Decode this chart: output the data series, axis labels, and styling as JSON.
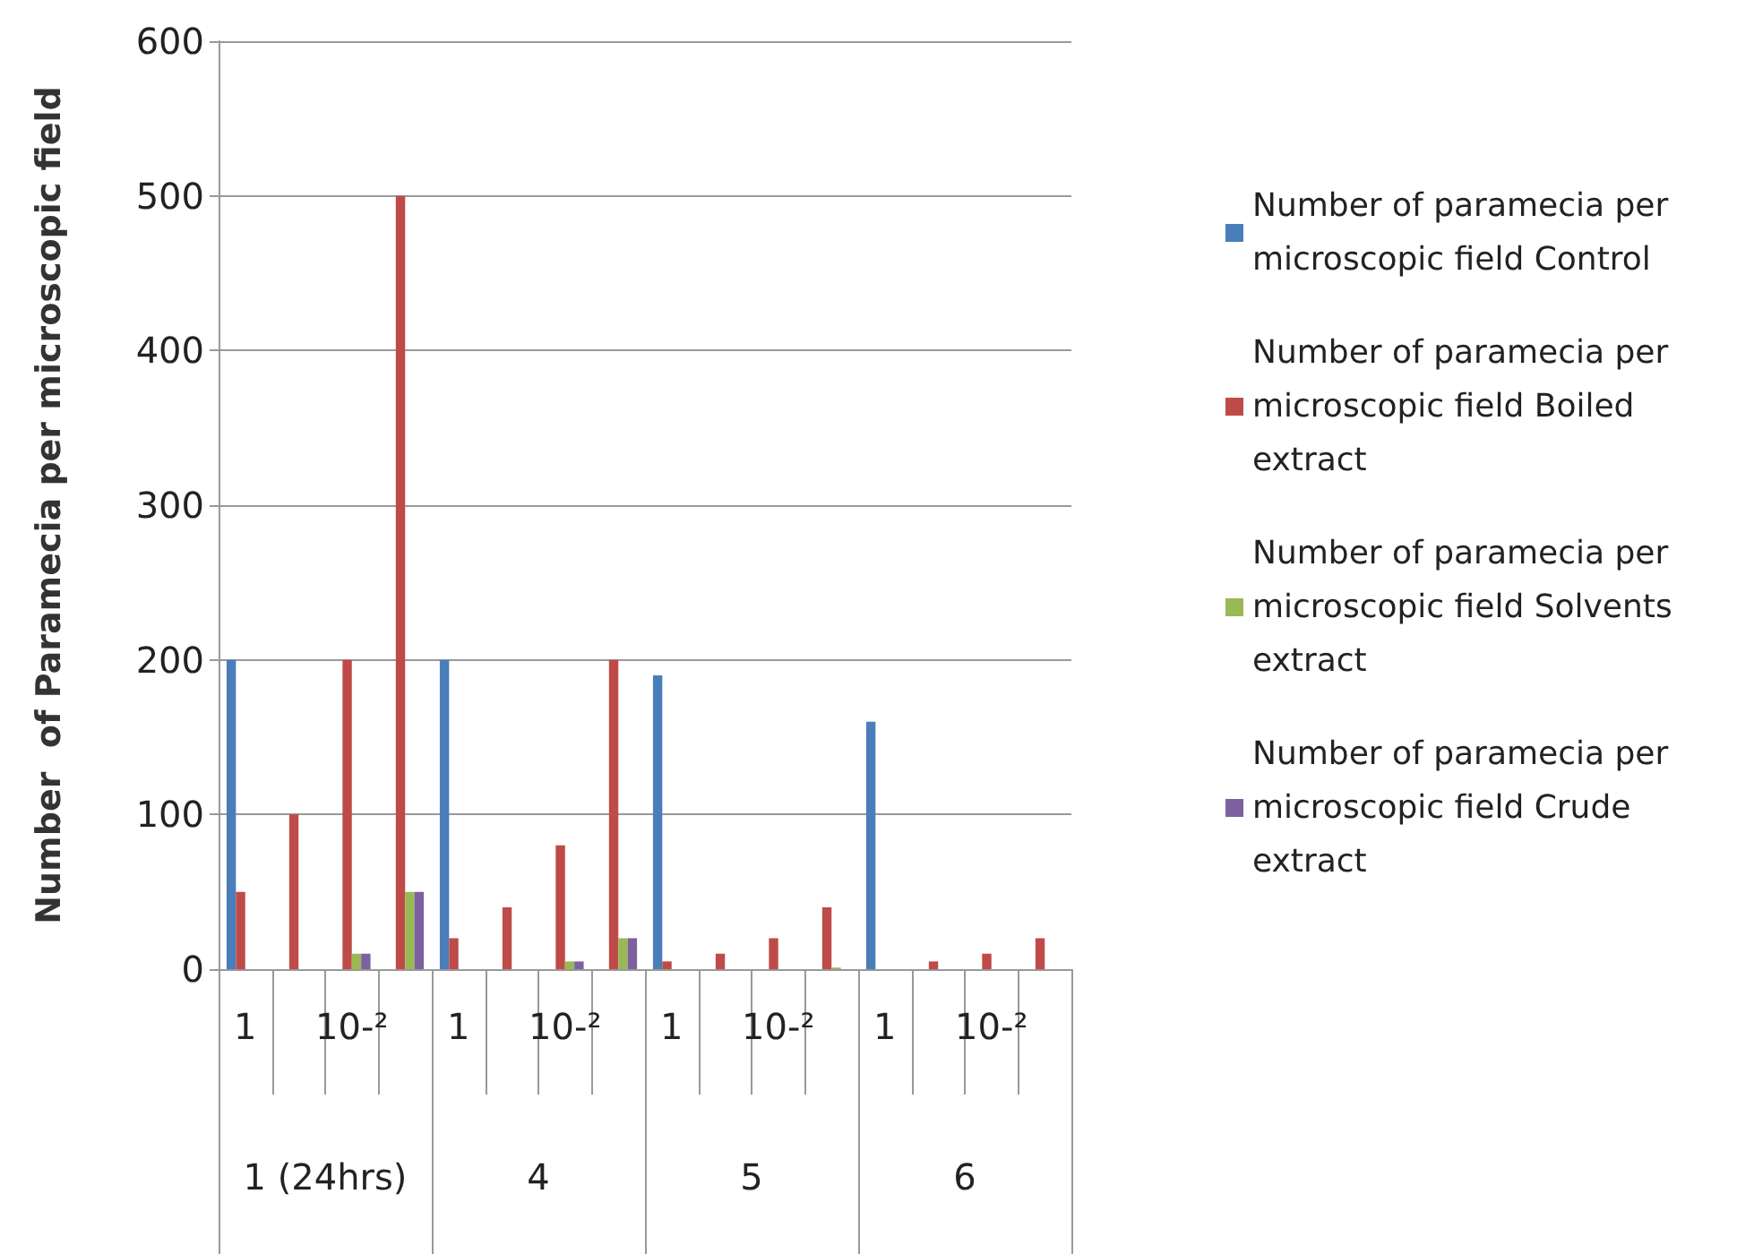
{
  "chart_data": {
    "type": "bar",
    "ylabel": "Number  of Paramecia per microscopic field",
    "categories": [
      "1",
      null,
      "10-²",
      null,
      "1",
      null,
      "10-²",
      null,
      "1",
      null,
      "10-²",
      null,
      "1",
      null,
      "10-²",
      null
    ],
    "annotations": [
      "1 (24hrs)",
      "4",
      "5",
      "6"
    ],
    "series": [
      {
        "name": "Number of paramecia per microscopic field Control",
        "color": "#4a7ebb",
        "values": [
          200,
          0,
          0,
          0,
          200,
          0,
          0,
          0,
          190,
          0,
          0,
          0,
          160,
          0,
          0,
          0
        ]
      },
      {
        "name": "Number of paramecia per microscopic field Boiled extract",
        "color": "#be4b48",
        "values": [
          50,
          100,
          200,
          500,
          20,
          40,
          80,
          200,
          5,
          10,
          20,
          40,
          0,
          5,
          10,
          20
        ]
      },
      {
        "name": "Number of paramecia per microscopic field Solvents extract",
        "color": "#98b954",
        "values": [
          0,
          0,
          10,
          50,
          0,
          0,
          5,
          20,
          0,
          0,
          0,
          1,
          0,
          0,
          0,
          0
        ]
      },
      {
        "name": "Number of paramecia per microscopic field Crude extract",
        "color": "#7d60a0",
        "values": [
          0,
          0,
          10,
          50,
          0,
          0,
          5,
          20,
          0,
          0,
          0,
          null,
          0,
          0,
          0,
          0
        ]
      }
    ],
    "ylim": [
      0,
      600
    ],
    "yticks": [
      0,
      100,
      200,
      300,
      400,
      500,
      600
    ],
    "grid": "y",
    "legend": "right"
  }
}
